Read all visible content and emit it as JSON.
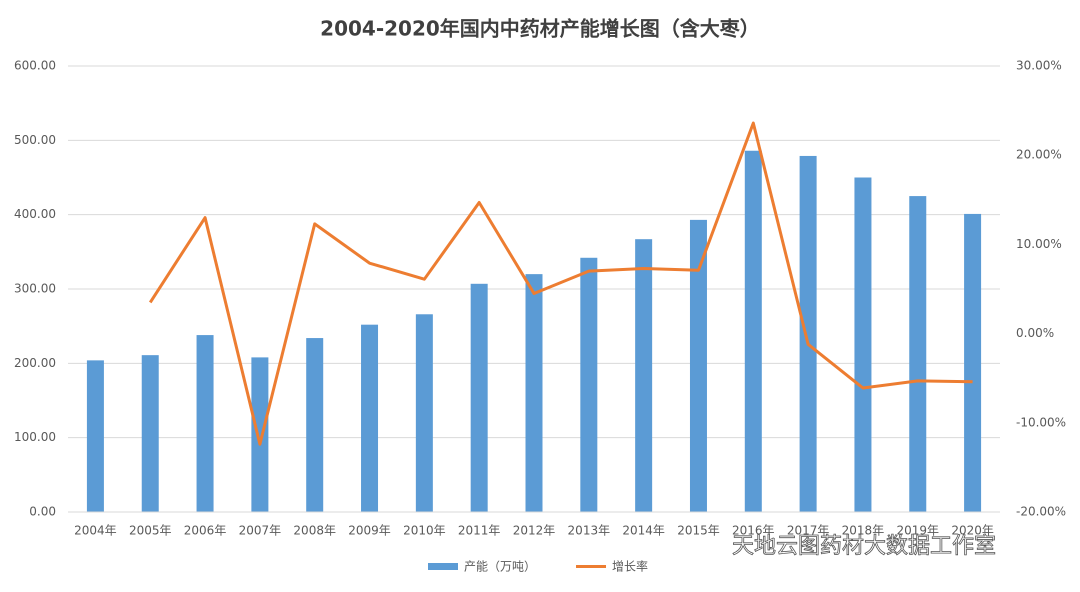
{
  "chart_data": {
    "type": "bar-line",
    "title": "2004-2020年国内中药材产能增长图（含大枣）",
    "watermark": "天地云图药材大数据工作室",
    "categories": [
      "2004年",
      "2005年",
      "2006年",
      "2007年",
      "2008年",
      "2009年",
      "2010年",
      "2011年",
      "2012年",
      "2013年",
      "2014年",
      "2015年",
      "2016年",
      "2017年",
      "2018年",
      "2019年",
      "2020年"
    ],
    "series": [
      {
        "name": "产能（万吨）",
        "type": "bar",
        "color": "#5b9bd5",
        "values": [
          204,
          211,
          238,
          208,
          234,
          252,
          266,
          307,
          320,
          342,
          367,
          393,
          486,
          479,
          450,
          425,
          401
        ]
      },
      {
        "name": "增长率",
        "type": "line",
        "axis": "y2",
        "color": "#ed7d31",
        "values": [
          null,
          3.5,
          13.0,
          -12.4,
          12.3,
          7.9,
          6.1,
          14.7,
          4.5,
          7.0,
          7.3,
          7.1,
          23.6,
          -1.2,
          -6.1,
          -5.3,
          -5.4
        ]
      }
    ],
    "ylim": [
      0,
      600
    ],
    "yticks": [
      {
        "value": 0,
        "label": "0.00"
      },
      {
        "value": 100,
        "label": "100.00"
      },
      {
        "value": 200,
        "label": "200.00"
      },
      {
        "value": 300,
        "label": "300.00"
      },
      {
        "value": 400,
        "label": "400.00"
      },
      {
        "value": 500,
        "label": "500.00"
      },
      {
        "value": 600,
        "label": "600.00"
      }
    ],
    "y2lim": [
      -20,
      30
    ],
    "y2ticks": [
      {
        "value": -20,
        "label": "-20.00%"
      },
      {
        "value": -10,
        "label": "-10.00%"
      },
      {
        "value": 0,
        "label": "0.00%"
      },
      {
        "value": 10,
        "label": "10.00%"
      },
      {
        "value": 20,
        "label": "20.00%"
      },
      {
        "value": 30,
        "label": "30.00%"
      }
    ],
    "grid": true,
    "legend": "bottom"
  }
}
